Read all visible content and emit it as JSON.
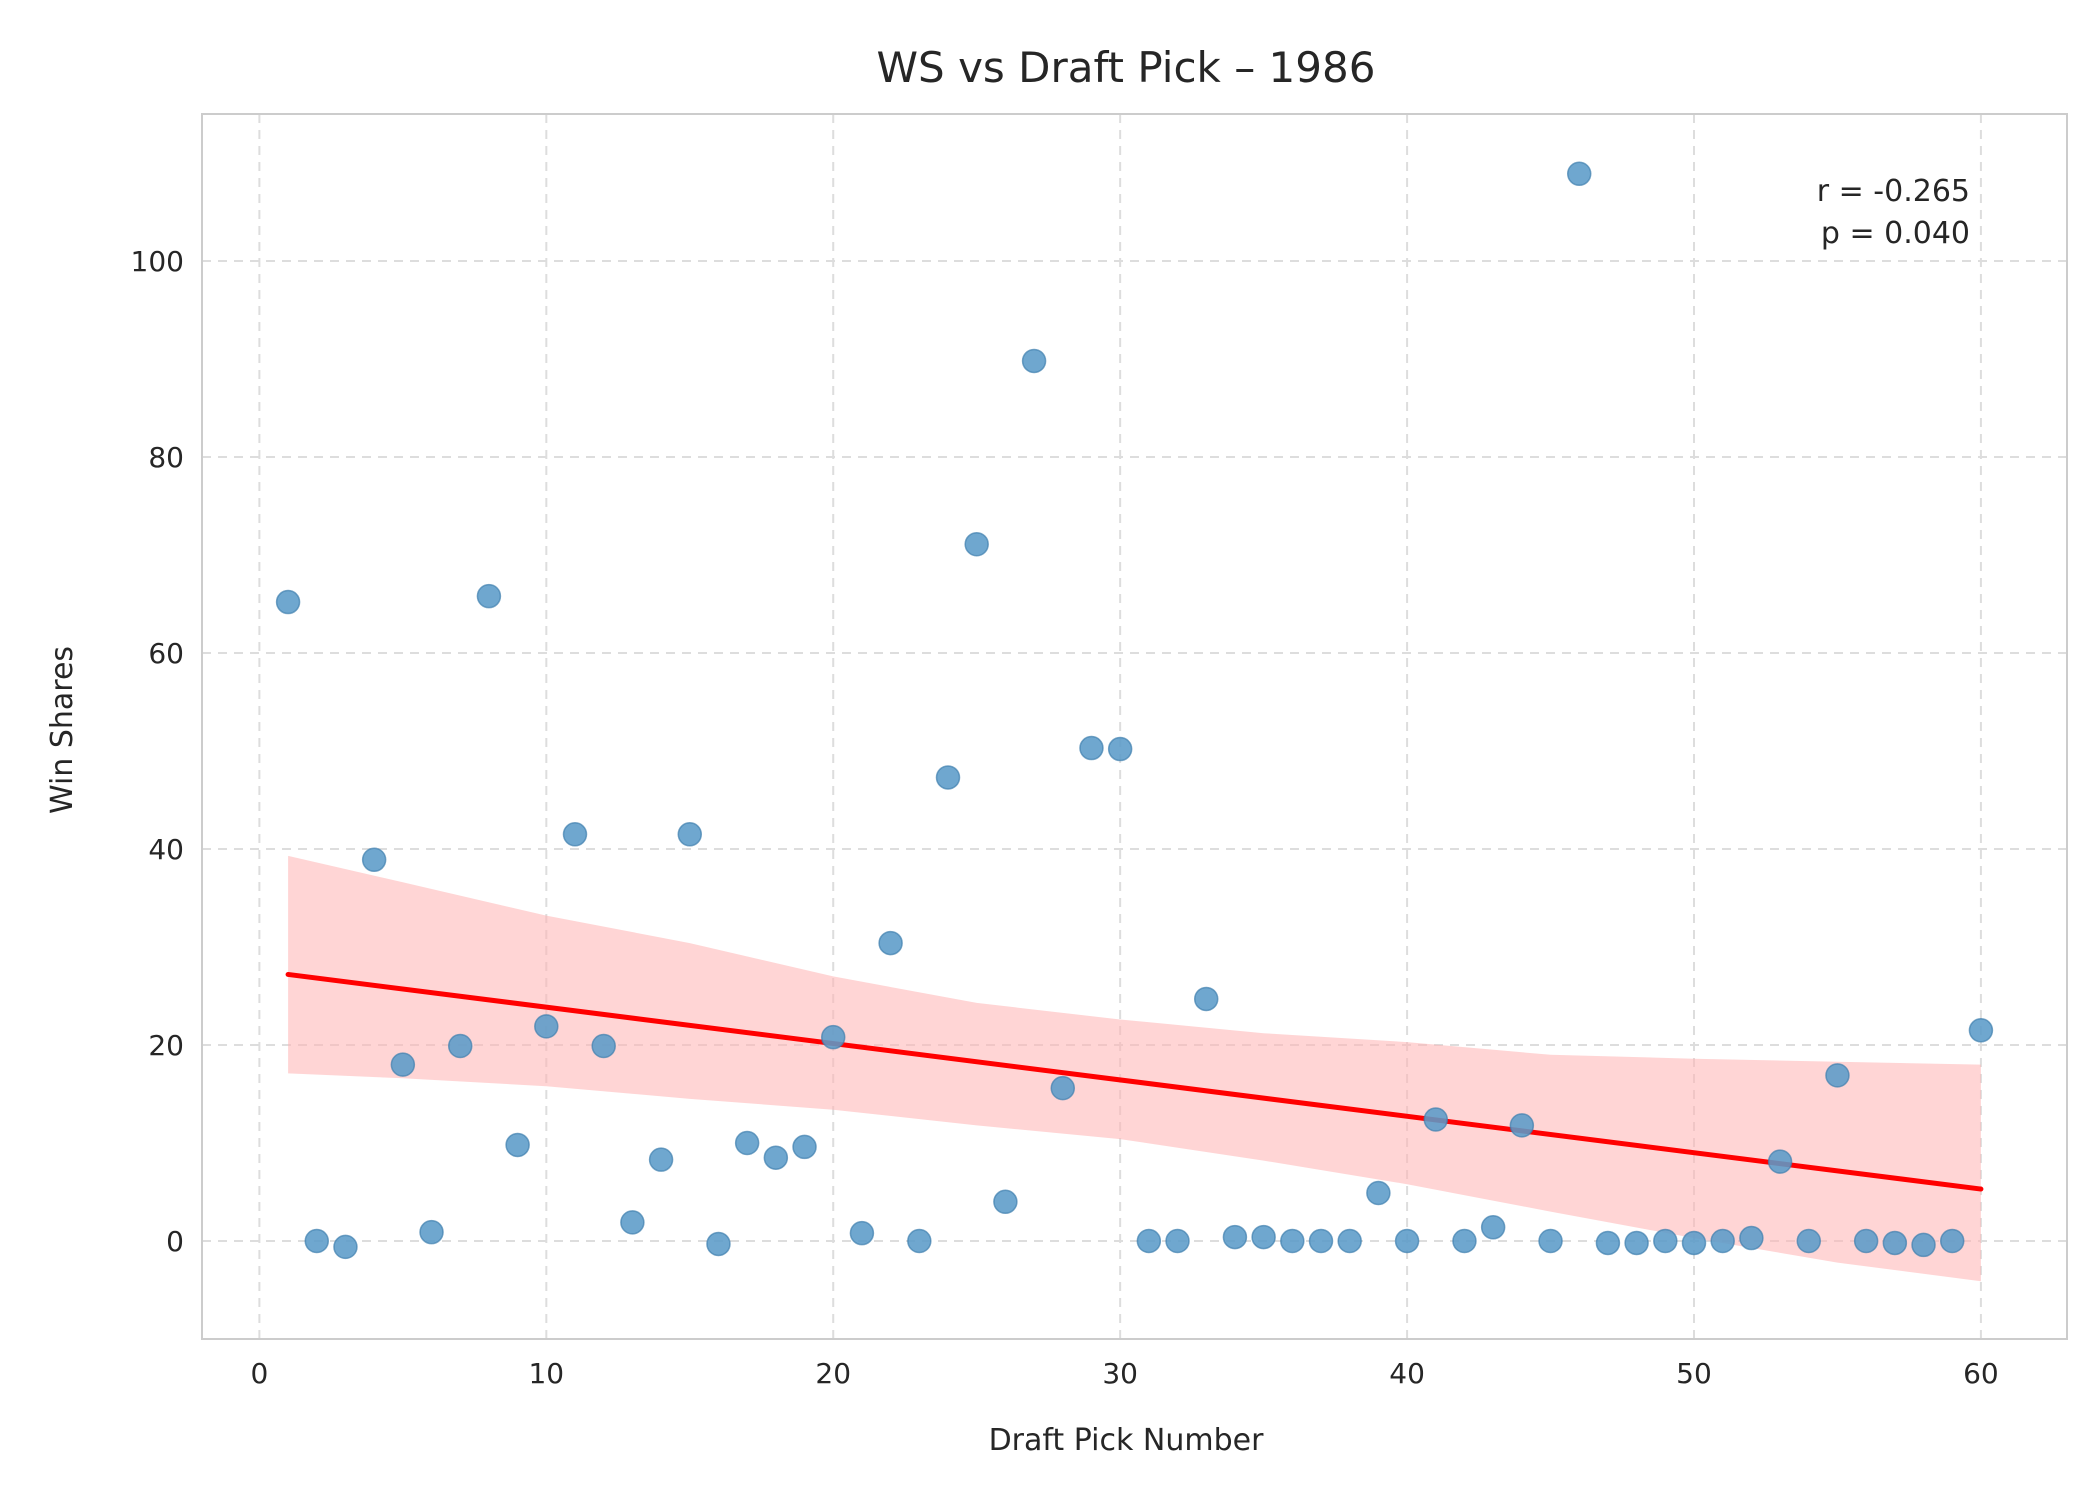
{
  "chart_data": {
    "type": "scatter",
    "title": "WS vs Draft Pick – 1986",
    "xlabel": "Draft Pick Number",
    "ylabel": "Win Shares",
    "xlim": [
      -2,
      63
    ],
    "ylim": [
      -10,
      115
    ],
    "xticks": [
      0,
      10,
      20,
      30,
      40,
      50,
      60
    ],
    "yticks": [
      0,
      20,
      40,
      60,
      80,
      100
    ],
    "grid": true,
    "point_color": "#5b9bc8",
    "points": [
      {
        "x": 1,
        "y": 65.2
      },
      {
        "x": 2,
        "y": 0.0
      },
      {
        "x": 3,
        "y": -0.6
      },
      {
        "x": 4,
        "y": 38.9
      },
      {
        "x": 5,
        "y": 18.0
      },
      {
        "x": 6,
        "y": 0.9
      },
      {
        "x": 7,
        "y": 19.9
      },
      {
        "x": 8,
        "y": 65.8
      },
      {
        "x": 9,
        "y": 9.8
      },
      {
        "x": 10,
        "y": 21.9
      },
      {
        "x": 11,
        "y": 41.5
      },
      {
        "x": 12,
        "y": 19.9
      },
      {
        "x": 13,
        "y": 1.9
      },
      {
        "x": 14,
        "y": 8.3
      },
      {
        "x": 15,
        "y": 41.5
      },
      {
        "x": 16,
        "y": -0.3
      },
      {
        "x": 17,
        "y": 10.0
      },
      {
        "x": 18,
        "y": 8.5
      },
      {
        "x": 19,
        "y": 9.6
      },
      {
        "x": 20,
        "y": 20.8
      },
      {
        "x": 21,
        "y": 0.8
      },
      {
        "x": 22,
        "y": 30.4
      },
      {
        "x": 23,
        "y": 0.0
      },
      {
        "x": 24,
        "y": 47.3
      },
      {
        "x": 25,
        "y": 71.1
      },
      {
        "x": 26,
        "y": 4.0
      },
      {
        "x": 27,
        "y": 89.8
      },
      {
        "x": 28,
        "y": 15.6
      },
      {
        "x": 29,
        "y": 50.3
      },
      {
        "x": 30,
        "y": 50.2
      },
      {
        "x": 31,
        "y": 0.0
      },
      {
        "x": 32,
        "y": 0.0
      },
      {
        "x": 33,
        "y": 24.7
      },
      {
        "x": 34,
        "y": 0.4
      },
      {
        "x": 35,
        "y": 0.4
      },
      {
        "x": 36,
        "y": 0.0
      },
      {
        "x": 37,
        "y": 0.0
      },
      {
        "x": 38,
        "y": 0.0
      },
      {
        "x": 39,
        "y": 4.9
      },
      {
        "x": 40,
        "y": 0.0
      },
      {
        "x": 41,
        "y": 12.4
      },
      {
        "x": 42,
        "y": 0.0
      },
      {
        "x": 43,
        "y": 1.4
      },
      {
        "x": 44,
        "y": 11.8
      },
      {
        "x": 45,
        "y": 0.0
      },
      {
        "x": 46,
        "y": 108.9
      },
      {
        "x": 47,
        "y": -0.2
      },
      {
        "x": 48,
        "y": -0.2
      },
      {
        "x": 49,
        "y": 0.0
      },
      {
        "x": 50,
        "y": -0.2
      },
      {
        "x": 51,
        "y": 0.0
      },
      {
        "x": 52,
        "y": 0.3
      },
      {
        "x": 53,
        "y": 8.1
      },
      {
        "x": 54,
        "y": 0.0
      },
      {
        "x": 55,
        "y": 16.9
      },
      {
        "x": 56,
        "y": 0.0
      },
      {
        "x": 57,
        "y": -0.2
      },
      {
        "x": 58,
        "y": -0.4
      },
      {
        "x": 59,
        "y": 0.0
      },
      {
        "x": 60,
        "y": 21.5
      }
    ],
    "regression": {
      "color": "#ff0000",
      "band_color": "#ffb3b3",
      "line": [
        {
          "x": 1,
          "y": 27.2
        },
        {
          "x": 60,
          "y": 5.3
        }
      ],
      "band": [
        {
          "x": 1,
          "lo": 17.1,
          "hi": 39.3
        },
        {
          "x": 5,
          "lo": 16.6,
          "hi": 36.6
        },
        {
          "x": 10,
          "lo": 15.8,
          "hi": 33.2
        },
        {
          "x": 15,
          "lo": 14.5,
          "hi": 30.4
        },
        {
          "x": 20,
          "lo": 13.4,
          "hi": 27.0
        },
        {
          "x": 25,
          "lo": 11.8,
          "hi": 24.3
        },
        {
          "x": 30,
          "lo": 10.4,
          "hi": 22.6
        },
        {
          "x": 35,
          "lo": 8.2,
          "hi": 21.2
        },
        {
          "x": 40,
          "lo": 5.8,
          "hi": 20.3
        },
        {
          "x": 45,
          "lo": 3.0,
          "hi": 19.0
        },
        {
          "x": 50,
          "lo": 0.3,
          "hi": 18.6
        },
        {
          "x": 55,
          "lo": -2.2,
          "hi": 18.3
        },
        {
          "x": 60,
          "lo": -4.1,
          "hi": 18.0
        }
      ]
    },
    "annotation": {
      "line1": "r = -0.265",
      "line2": "p = 0.040"
    }
  }
}
